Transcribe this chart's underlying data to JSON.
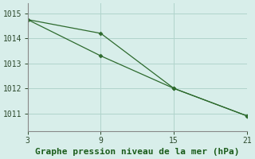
{
  "line1_x": [
    3,
    9,
    15,
    21
  ],
  "line1_y": [
    1014.75,
    1013.3,
    1012.0,
    1010.9
  ],
  "line2_x": [
    3,
    9,
    15,
    21
  ],
  "line2_y": [
    1014.75,
    1014.2,
    1012.0,
    1010.9
  ],
  "line_color": "#2d6a2d",
  "marker": "D",
  "marker_size": 2.5,
  "xlabel": "Graphe pression niveau de la mer (hPa)",
  "xlim": [
    3,
    21
  ],
  "ylim": [
    1010.3,
    1015.4
  ],
  "yticks": [
    1011,
    1012,
    1013,
    1014,
    1015
  ],
  "xticks": [
    3,
    9,
    15,
    21
  ],
  "background_color": "#d8eeea",
  "grid_color": "#b0d4cc",
  "xlabel_color": "#1a5c1a",
  "xlabel_fontsize": 8,
  "tick_fontsize": 7
}
